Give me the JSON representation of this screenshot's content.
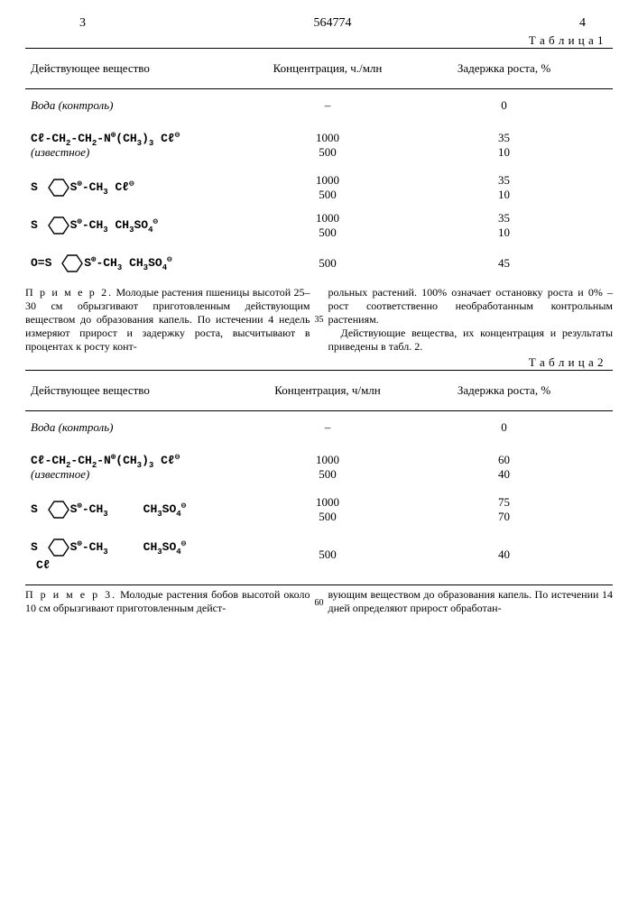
{
  "page": {
    "left_no": "3",
    "patent_no": "564774",
    "right_no": "4"
  },
  "tables": {
    "t1": {
      "label": "Т а б л и ц а 1",
      "head": {
        "c1": "Действующее вещество",
        "c2": "Концентрация, ч./млн",
        "c3": "Задержка роста, %"
      },
      "rows": [
        {
          "sub_html": "<span class='ital'>Вода (контроль)</span>",
          "conc": "–",
          "ret": "0"
        },
        {
          "sub_html": "<span class='formula'>Cℓ-CH<span class='sub'>2</span>-CH<span class='sub'>2</span>-N<span class='sup'>⊕</span>(CH<span class='sub'>3</span>)<span class='sub'>3</span> Cℓ<span class='sup'>⊖</span></span><br><span class='ital'>(известное)</span>",
          "conc": "1000<br>500",
          "ret": "35<br>10"
        },
        {
          "sub_html": "<span class='formula'>S <svg class='ring' width='28' height='22'><polygon points='4,11 10,2 20,2 26,11 20,20 10,20' fill='none' stroke='#000' stroke-width='1.4'/></svg>S<span class='sup'>⊕</span>-CH<span class='sub'>3</span> Cℓ<span class='sup'>⊖</span></span>",
          "conc": "1000<br>500",
          "ret": "35<br>10"
        },
        {
          "sub_html": "<span class='formula'>S <svg class='ring' width='28' height='22'><polygon points='4,11 10,2 20,2 26,11 20,20 10,20' fill='none' stroke='#000' stroke-width='1.4'/></svg>S<span class='sup'>⊕</span>-CH<span class='sub'>3</span> CH<span class='sub'>3</span>SO<span class='sub'>4</span><span class='sup'>⊖</span></span>",
          "conc": "1000<br>500",
          "ret": "35<br>10"
        },
        {
          "sub_html": "<span class='formula'>O=S <svg class='ring' width='28' height='22'><polygon points='4,11 10,2 20,2 26,11 20,20 10,20' fill='none' stroke='#000' stroke-width='1.4'/></svg>S<span class='sup'>⊕</span>-CH<span class='sub'>3</span> CH<span class='sub'>3</span>SO<span class='sub'>4</span><span class='sup'>⊖</span></span>",
          "conc": "500",
          "ret": "45"
        }
      ]
    },
    "t2": {
      "label": "Т а б л и ц а 2",
      "head": {
        "c1": "Действующее вещество",
        "c2": "Концентрация, ч/млн",
        "c3": "Задержка роста, %"
      },
      "rows": [
        {
          "sub_html": "<span class='ital'>Вода (контроль)</span>",
          "conc": "–",
          "ret": "0"
        },
        {
          "sub_html": "<span class='formula'>Cℓ-CH<span class='sub'>2</span>-CH<span class='sub'>2</span>-N<span class='sup'>⊕</span>(CH<span class='sub'>3</span>)<span class='sub'>3</span> Cℓ<span class='sup'>⊖</span></span><br><span class='ital'>(известное)</span>",
          "conc": "1000<br>500",
          "ret": "60<br>40"
        },
        {
          "sub_html": "<span class='formula'>S <svg class='ring' width='28' height='22'><polygon points='4,11 10,2 20,2 26,11 20,20 10,20' fill='none' stroke='#000' stroke-width='1.4'/></svg>S<span class='sup'>⊕</span>-CH<span class='sub'>3</span> &nbsp;&nbsp;&nbsp; CH<span class='sub'>3</span>SO<span class='sub'>4</span><span class='sup'>⊖</span></span>",
          "conc": "1000<br>500",
          "ret": "75<br>70"
        },
        {
          "sub_html": "<span class='formula'>S <svg class='ring' width='28' height='22'><polygon points='4,11 10,2 20,2 26,11 20,20 10,20' fill='none' stroke='#000' stroke-width='1.4'/><text x='9' y='29' font-size='11' font-family='Courier New'></text></svg>S<span class='sup'>⊕</span>-CH<span class='sub'>3</span> &nbsp;&nbsp;&nbsp; CH<span class='sub'>3</span>SO<span class='sub'>4</span><span class='sup'>⊖</span></span><br><span class='formula' style='padding-left:6px'>Cℓ</span>",
          "conc": "500",
          "ret": "40"
        }
      ]
    }
  },
  "para1": {
    "left_head": "П р и м е р 2.",
    "left": " Молодые растения пшеницы высотой 25–30 см обрызгивают приготовленным действующим веществом до образования капель. По истечении 4 недель измеряют прирост и задержку роста, высчитывают в процентах к росту конт-",
    "right": "рольных растений. 100% означает остановку роста и 0% – рост соответственно необработанным контрольным растениям.",
    "right2": "Действующие вещества, их концентрация и результаты приведены в табл. 2.",
    "margin_no": "35"
  },
  "para2": {
    "left_head": "П р и м е р 3.",
    "left": " Молодые растения бобов высотой около 10 см обрызгивают приготовленным дейст-",
    "right": "вующим веществом до образования капель. По истечении 14 дней определяют прирост обработан-",
    "margin_no": "60"
  }
}
